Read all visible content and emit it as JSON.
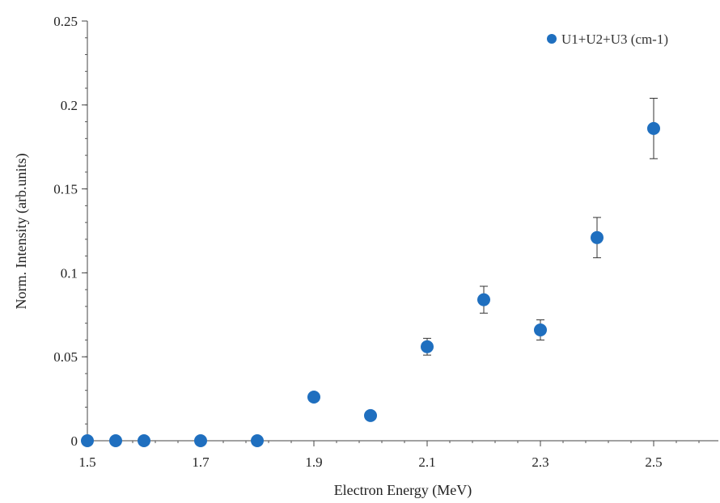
{
  "chart_data": {
    "type": "scatter",
    "xlabel": "Electron Energy (MeV)",
    "ylabel": "Norm. Intensity (arb.units)",
    "xlim": [
      1.5,
      2.6
    ],
    "ylim": [
      0,
      0.25
    ],
    "x_ticks": [
      1.5,
      1.7,
      1.9,
      2.1,
      2.3,
      2.5
    ],
    "x_tick_labels": [
      "1.5",
      "1.7",
      "1.9",
      "2.1",
      "2.3",
      "2.5"
    ],
    "y_ticks": [
      0,
      0.05,
      0.1,
      0.15,
      0.2,
      0.25
    ],
    "y_tick_labels": [
      "0",
      "0.05",
      "0.1",
      "0.15",
      "0.2",
      "0.25"
    ],
    "grid": false,
    "legend_position": "top-right",
    "series": [
      {
        "name": "U1+U2+U3 (cm-1)",
        "color": "#1f6fbf",
        "x": [
          1.5,
          1.55,
          1.6,
          1.7,
          1.8,
          1.9,
          2.0,
          2.1,
          2.2,
          2.3,
          2.4,
          2.5
        ],
        "y": [
          0,
          0,
          0,
          0,
          0,
          0.026,
          0.015,
          0.056,
          0.084,
          0.066,
          0.121,
          0.186
        ],
        "err": [
          0,
          0,
          0,
          0,
          0,
          0,
          0,
          0.005,
          0.008,
          0.006,
          0.012,
          0.018
        ]
      }
    ]
  }
}
